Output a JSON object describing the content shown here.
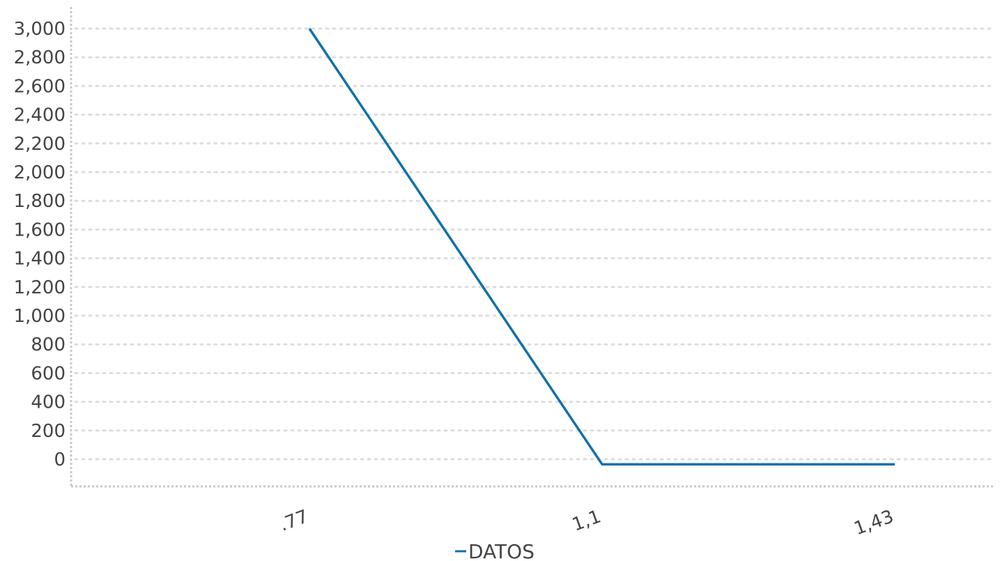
{
  "chart_data": {
    "type": "line",
    "categories": [
      ".77",
      "1,1",
      "1,43"
    ],
    "series": [
      {
        "name": "DATOS",
        "values": [
          3000,
          -35,
          -35
        ],
        "color": "#1170aa"
      }
    ],
    "y_ticks": [
      0,
      200,
      400,
      600,
      800,
      1000,
      1200,
      1400,
      1600,
      1800,
      2000,
      2200,
      2400,
      2600,
      2800,
      3000
    ],
    "y_tick_labels": [
      "0",
      "200",
      "400",
      "600",
      "800",
      "1,000",
      "1,200",
      "1,400",
      "1,600",
      "1,800",
      "2,000",
      "2,200",
      "2,400",
      "2,600",
      "2,800",
      "3,000"
    ],
    "ylim": [
      -190,
      3150
    ],
    "grid": true,
    "legend": {
      "placement": "bottom-center",
      "label": "DATOS"
    },
    "title": "",
    "xlabel": "",
    "ylabel": ""
  }
}
